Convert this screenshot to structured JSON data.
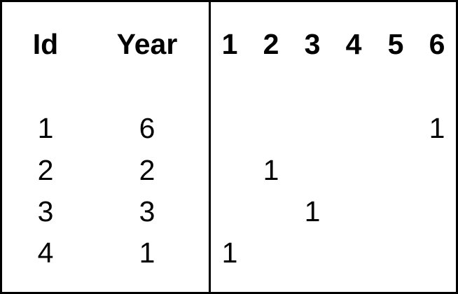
{
  "left_table": {
    "headers": [
      "Id",
      "Year"
    ],
    "rows": [
      [
        "1",
        "6"
      ],
      [
        "2",
        "2"
      ],
      [
        "3",
        "3"
      ],
      [
        "4",
        "1"
      ]
    ]
  },
  "right_table": {
    "headers": [
      "1",
      "2",
      "3",
      "4",
      "5",
      "6"
    ],
    "rows": [
      [
        "",
        "",
        "",
        "",
        "",
        "1"
      ],
      [
        "",
        "1",
        "",
        "",
        "",
        ""
      ],
      [
        "",
        "",
        "1",
        "",
        "",
        ""
      ],
      [
        "1",
        "",
        "",
        "",
        "",
        ""
      ]
    ]
  }
}
